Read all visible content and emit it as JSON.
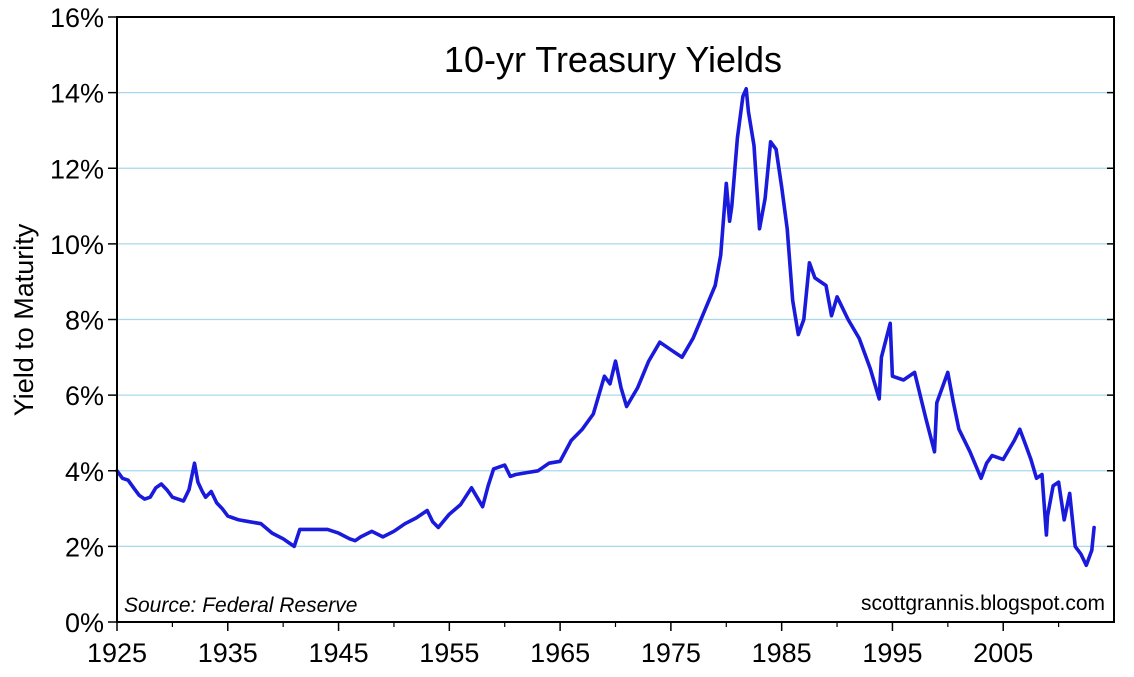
{
  "chart_data": {
    "type": "line",
    "title": "10-yr Treasury Yields",
    "ylabel": "Yield to Maturity",
    "xlabel": "",
    "xlim": [
      1925,
      2015
    ],
    "ylim": [
      0,
      16
    ],
    "x_ticks": [
      "1925",
      "1935",
      "1945",
      "1955",
      "1965",
      "1975",
      "1985",
      "1995",
      "2005"
    ],
    "y_ticks": [
      "0%",
      "2%",
      "4%",
      "6%",
      "8%",
      "10%",
      "12%",
      "14%",
      "16%"
    ],
    "grid": "horizontal",
    "source_note": "Source: Federal Reserve",
    "credit": "scottgrannis.blogspot.com",
    "line_color": "#1a1adc",
    "grid_color": "#a8d8ec",
    "series": [
      {
        "x": [
          1925.0,
          1925.5,
          1926.0,
          1926.5,
          1927.0,
          1927.5,
          1928.0,
          1928.5,
          1929.0,
          1929.5,
          1930.0,
          1930.5,
          1931.0,
          1931.5,
          1932.0,
          1932.3,
          1932.7,
          1933.0,
          1933.5,
          1934.0,
          1934.5,
          1935.0,
          1935.5,
          1936.0,
          1937.0,
          1938.0,
          1939.0,
          1940.0,
          1940.5,
          1941.0,
          1941.5,
          1942.0,
          1943.0,
          1944.0,
          1945.0,
          1946.0,
          1946.5,
          1947.0,
          1948.0,
          1949.0,
          1950.0,
          1951.0,
          1952.0,
          1953.0,
          1953.5,
          1954.0,
          1955.0,
          1956.0,
          1957.0,
          1957.5,
          1958.0,
          1958.5,
          1959.0,
          1960.0,
          1960.5,
          1961.0,
          1962.0,
          1963.0,
          1964.0,
          1965.0,
          1966.0,
          1967.0,
          1968.0,
          1969.0,
          1969.5,
          1970.0,
          1970.5,
          1971.0,
          1972.0,
          1973.0,
          1974.0,
          1975.0,
          1976.0,
          1977.0,
          1978.0,
          1979.0,
          1979.5,
          1980.0,
          1980.3,
          1980.5,
          1981.0,
          1981.5,
          1981.8,
          1982.0,
          1982.5,
          1983.0,
          1983.5,
          1984.0,
          1984.5,
          1985.0,
          1985.5,
          1986.0,
          1986.5,
          1987.0,
          1987.5,
          1988.0,
          1989.0,
          1989.5,
          1990.0,
          1991.0,
          1992.0,
          1993.0,
          1993.8,
          1994.0,
          1994.8,
          1995.0,
          1996.0,
          1997.0,
          1998.0,
          1998.8,
          1999.0,
          2000.0,
          2000.5,
          2001.0,
          2002.0,
          2003.0,
          2003.5,
          2004.0,
          2005.0,
          2006.0,
          2006.5,
          2007.0,
          2007.5,
          2008.0,
          2008.5,
          2008.9,
          2009.0,
          2009.5,
          2010.0,
          2010.5,
          2011.0,
          2011.5,
          2012.0,
          2012.5,
          2013.0,
          2013.2
        ],
        "y": [
          4.0,
          3.8,
          3.75,
          3.55,
          3.35,
          3.25,
          3.3,
          3.55,
          3.65,
          3.5,
          3.3,
          3.25,
          3.2,
          3.5,
          4.2,
          3.7,
          3.45,
          3.3,
          3.45,
          3.15,
          3.0,
          2.8,
          2.75,
          2.7,
          2.65,
          2.6,
          2.35,
          2.2,
          2.1,
          2.0,
          2.45,
          2.45,
          2.45,
          2.45,
          2.35,
          2.2,
          2.15,
          2.25,
          2.4,
          2.25,
          2.4,
          2.6,
          2.75,
          2.95,
          2.65,
          2.5,
          2.85,
          3.1,
          3.55,
          3.3,
          3.05,
          3.6,
          4.05,
          4.15,
          3.85,
          3.9,
          3.95,
          4.0,
          4.2,
          4.25,
          4.8,
          5.1,
          5.5,
          6.5,
          6.3,
          6.9,
          6.2,
          5.7,
          6.2,
          6.9,
          7.4,
          7.2,
          7.0,
          7.5,
          8.2,
          8.9,
          9.7,
          11.6,
          10.6,
          11.0,
          12.8,
          13.9,
          14.1,
          13.5,
          12.6,
          10.4,
          11.2,
          12.7,
          12.5,
          11.5,
          10.4,
          8.5,
          7.6,
          8.0,
          9.5,
          9.1,
          8.9,
          8.1,
          8.6,
          8.0,
          7.5,
          6.7,
          5.9,
          7.0,
          7.9,
          6.5,
          6.4,
          6.6,
          5.4,
          4.5,
          5.8,
          6.6,
          5.8,
          5.1,
          4.5,
          3.8,
          4.2,
          4.4,
          4.3,
          4.8,
          5.1,
          4.7,
          4.3,
          3.8,
          3.9,
          2.3,
          2.8,
          3.6,
          3.7,
          2.7,
          3.4,
          2.0,
          1.8,
          1.5,
          1.9,
          2.5
        ]
      }
    ]
  }
}
